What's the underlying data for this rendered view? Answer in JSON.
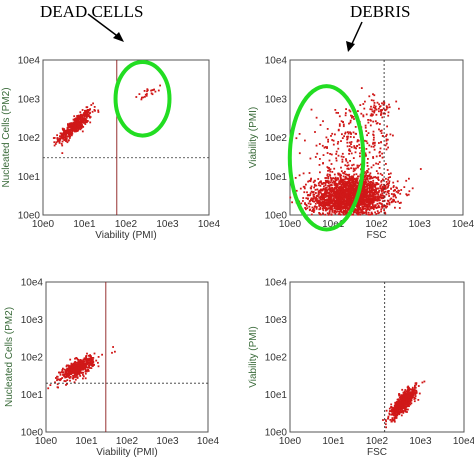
{
  "annotations": {
    "dead_cells": "DEAD CELLS",
    "debris": "DEBRIS"
  },
  "colors": {
    "dots": "#d01818",
    "highlight": "#22dd22",
    "gate_solid": "#8b1a1a",
    "gate_dashed": "#333333",
    "frame": "#555555"
  },
  "chart_data": [
    {
      "type": "scatter",
      "panel": "top-left",
      "x_scale": "log",
      "y_scale": "log",
      "xlim": [
        1,
        10000
      ],
      "ylim": [
        1,
        10000
      ],
      "x_ticks": [
        "10e0",
        "10e1",
        "10e2",
        "10e3",
        "10e4"
      ],
      "y_ticks": [
        "10e0",
        "10e1",
        "10e2",
        "10e3",
        "10e4"
      ],
      "xlabel": "Viability (PMI)",
      "ylabel": "Nucleated Cells (PM2)",
      "gate_x": {
        "value": 60,
        "style": "solid"
      },
      "gate_y": {
        "value": 30,
        "style": "dashed"
      },
      "clusters": [
        {
          "x": 6,
          "y": 200,
          "sx": 0.2,
          "sy": 0.2,
          "corr": 0.85,
          "n": 450
        },
        {
          "x": 400,
          "y": 1500,
          "sx": 0.22,
          "sy": 0.12,
          "corr": 0.9,
          "n": 22
        }
      ],
      "highlight": {
        "label": "DEAD CELLS",
        "center": [
          250,
          1000
        ],
        "span_decades": [
          1.3,
          1.9
        ]
      }
    },
    {
      "type": "scatter",
      "panel": "top-right",
      "x_scale": "log",
      "y_scale": "log",
      "xlim": [
        1,
        10000
      ],
      "ylim": [
        1,
        10000
      ],
      "x_ticks": [
        "10e0",
        "10e1",
        "10e2",
        "10e3",
        "10e4"
      ],
      "y_ticks": [
        "10e0",
        "10e1",
        "10e2",
        "10e3",
        "10e4"
      ],
      "xlabel": "FSC",
      "ylabel": "Viability (PMI)",
      "gate_x": {
        "value": 150,
        "style": "dashed"
      },
      "clusters": [
        {
          "x": 25,
          "y": 3,
          "sx": 0.45,
          "sy": 0.28,
          "corr": 0.1,
          "n": 2400
        },
        {
          "x": 30,
          "y": 60,
          "sx": 0.5,
          "sy": 0.5,
          "corr": 0.2,
          "n": 280
        },
        {
          "x": 100,
          "y": 500,
          "sx": 0.2,
          "sy": 0.15,
          "corr": 0.3,
          "n": 60
        }
      ],
      "highlight": {
        "label": "DEBRIS",
        "center": [
          7,
          30
        ],
        "span_decades": [
          1.7,
          3.7
        ]
      }
    },
    {
      "type": "scatter",
      "panel": "bottom-left",
      "x_scale": "log",
      "y_scale": "log",
      "xlim": [
        1,
        10000
      ],
      "ylim": [
        1,
        10000
      ],
      "x_ticks": [
        "10e0",
        "10e1",
        "10e2",
        "10e3",
        "10e4"
      ],
      "y_ticks": [
        "10e0",
        "10e1",
        "10e2",
        "10e3",
        "10e4"
      ],
      "xlabel": "Viability (PMI)",
      "ylabel": "Nucleated Cells (PM2)",
      "gate_x": {
        "value": 30,
        "style": "solid"
      },
      "gate_y": {
        "value": 20,
        "style": "dashed"
      },
      "clusters": [
        {
          "x": 6,
          "y": 50,
          "sx": 0.2,
          "sy": 0.15,
          "corr": 0.7,
          "n": 500
        },
        {
          "x": 45,
          "y": 150,
          "sx": 0.05,
          "sy": 0.1,
          "corr": 0,
          "n": 3
        }
      ]
    },
    {
      "type": "scatter",
      "panel": "bottom-right",
      "x_scale": "log",
      "y_scale": "log",
      "xlim": [
        1,
        10000
      ],
      "ylim": [
        1,
        10000
      ],
      "x_ticks": [
        "10e0",
        "10e1",
        "10e2",
        "10e3",
        "10e4"
      ],
      "y_ticks": [
        "10e0",
        "10e1",
        "10e2",
        "10e3",
        "10e4"
      ],
      "xlabel": "FSC",
      "ylabel": "Viability (PMI)",
      "gate_x": {
        "value": 150,
        "style": "dashed"
      },
      "clusters": [
        {
          "x": 400,
          "y": 6,
          "sx": 0.15,
          "sy": 0.2,
          "corr": 0.8,
          "n": 600
        }
      ]
    }
  ]
}
